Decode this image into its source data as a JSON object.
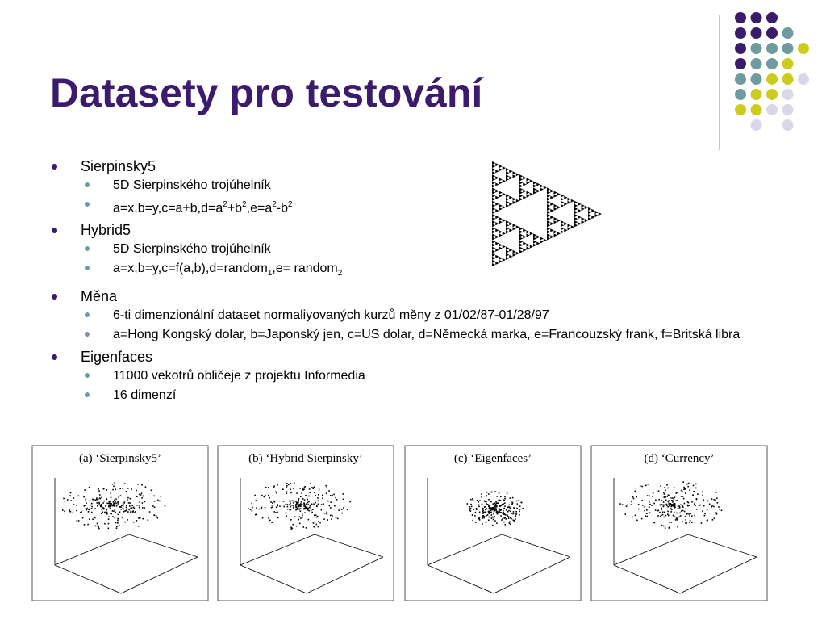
{
  "title": "Datasety pro testování",
  "bullets": [
    {
      "text": "Sierpinsky5",
      "items": [
        [
          {
            "text": "5D Sierpinského trojúhelník"
          }
        ],
        [
          {
            "text": "a=x,b=y,c=a+b,d=a"
          },
          {
            "text": "2",
            "script": "sup"
          },
          {
            "text": "+b"
          },
          {
            "text": "2",
            "script": "sup"
          },
          {
            "text": ",e=a"
          },
          {
            "text": "2",
            "script": "sup"
          },
          {
            "text": "-b"
          },
          {
            "text": "2",
            "script": "sup"
          }
        ]
      ]
    },
    {
      "text": "Hybrid5",
      "items": [
        [
          {
            "text": "5D Sierpinského trojúhelník"
          }
        ],
        [
          {
            "text": "a=x,b=y,c=f(a,b),d=random"
          },
          {
            "text": "1",
            "script": "sub"
          },
          {
            "text": ",e= random"
          },
          {
            "text": "2",
            "script": "sub"
          }
        ]
      ]
    },
    {
      "text": "Měna",
      "items": [
        [
          {
            "text": "6-ti dimenzionální dataset normaliyovaných kurzů měny z 01/02/87-01/28/97"
          }
        ],
        [
          {
            "text": "a=Hong Kongský dolar, b=Japonský jen, c=US dolar, d=Německá marka, e=Francouzský frank, f=Britská libra"
          }
        ]
      ]
    },
    {
      "text": "Eigenfaces",
      "items": [
        [
          {
            "text": "11000 vekotrů obličeje z projektu Informedia"
          }
        ],
        [
          {
            "text": "16 dimenzí"
          }
        ]
      ]
    }
  ],
  "panels": [
    "(a) ‘Sierpinsky5’",
    "(b) ‘Hybrid Sierpinsky’",
    "(c) ‘Eigenfaces’",
    "(d) ‘Currency’"
  ]
}
